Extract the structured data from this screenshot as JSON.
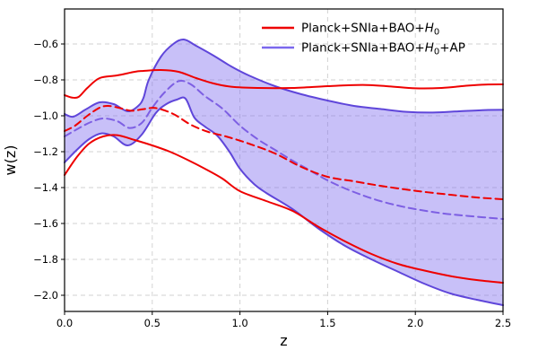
{
  "figure": {
    "background": "#ffffff",
    "frame_color": "#000000",
    "grid": {
      "color": "#d2d2d2",
      "dash": "5,4",
      "width": 1
    },
    "tick_color": "#000000",
    "text_color": "#000000"
  },
  "chart_data": {
    "type": "line",
    "title": "",
    "xlabel": "z",
    "ylabel": "w(z)",
    "xlim": [
      0,
      2.5
    ],
    "ylim": [
      -2.09,
      -0.405
    ],
    "grid": "dashed, both axes",
    "legend_position": "upper right, no frame",
    "x_ticks": [
      0,
      0.5,
      1.0,
      1.5,
      2.0,
      2.5
    ],
    "x_tick_labels": [
      "0.0",
      "0.5",
      "1.0",
      "1.5",
      "2.0",
      "2.5"
    ],
    "y_ticks": [
      -0.6,
      -0.8,
      -1.0,
      -1.2,
      -1.4,
      -1.6,
      -1.8,
      -2.0
    ],
    "y_tick_labels": [
      "−0.6",
      "−0.8",
      "−1.0",
      "−1.2",
      "−1.4",
      "−1.6",
      "−1.8",
      "−2.0"
    ],
    "legend": [
      {
        "label": "Planck+SNIa+BAO+H₀",
        "label_parts": {
          "prefix": "Planck+SNIa+BAO+",
          "math": "H",
          "sub": "0",
          "suffix": ""
        },
        "color": "#ee0000"
      },
      {
        "label": "Planck+SNIa+BAO+H₀+AP",
        "label_parts": {
          "prefix": "Planck+SNIa+BAO+",
          "math": "H",
          "sub": "0",
          "suffix": "+AP"
        },
        "color": "#7b68ee"
      }
    ],
    "band": {
      "name": "Planck+SNIa+BAO+H0+AP 1-sigma region",
      "fill": "#7b68ee",
      "fill_opacity": 0.42,
      "upper_series": "ap-upper",
      "lower_series": "ap-lower"
    },
    "series": [
      {
        "id": "red-upper",
        "name": "Planck+SNIa+BAO+H0 upper bound",
        "color": "#ee0000",
        "style": "solid",
        "points": [
          [
            0,
            -0.885
          ],
          [
            0.04,
            -0.898
          ],
          [
            0.08,
            -0.895
          ],
          [
            0.13,
            -0.845
          ],
          [
            0.2,
            -0.79
          ],
          [
            0.3,
            -0.775
          ],
          [
            0.4,
            -0.755
          ],
          [
            0.45,
            -0.75
          ],
          [
            0.55,
            -0.745
          ],
          [
            0.65,
            -0.755
          ],
          [
            0.75,
            -0.79
          ],
          [
            0.85,
            -0.82
          ],
          [
            0.95,
            -0.838
          ],
          [
            1.1,
            -0.845
          ],
          [
            1.3,
            -0.845
          ],
          [
            1.5,
            -0.835
          ],
          [
            1.7,
            -0.828
          ],
          [
            1.85,
            -0.836
          ],
          [
            2.0,
            -0.847
          ],
          [
            2.15,
            -0.845
          ],
          [
            2.3,
            -0.832
          ],
          [
            2.4,
            -0.826
          ],
          [
            2.5,
            -0.825
          ]
        ]
      },
      {
        "id": "red-median",
        "name": "Planck+SNIa+BAO+H0 median",
        "color": "#ee0000",
        "style": "dashed",
        "points": [
          [
            0,
            -1.085
          ],
          [
            0.06,
            -1.055
          ],
          [
            0.13,
            -1.0
          ],
          [
            0.2,
            -0.955
          ],
          [
            0.25,
            -0.945
          ],
          [
            0.32,
            -0.958
          ],
          [
            0.38,
            -0.972
          ],
          [
            0.45,
            -0.963
          ],
          [
            0.52,
            -0.957
          ],
          [
            0.62,
            -0.99
          ],
          [
            0.72,
            -1.05
          ],
          [
            0.82,
            -1.09
          ],
          [
            0.92,
            -1.115
          ],
          [
            1.05,
            -1.155
          ],
          [
            1.2,
            -1.21
          ],
          [
            1.35,
            -1.285
          ],
          [
            1.5,
            -1.34
          ],
          [
            1.65,
            -1.365
          ],
          [
            1.8,
            -1.39
          ],
          [
            2.0,
            -1.418
          ],
          [
            2.2,
            -1.44
          ],
          [
            2.35,
            -1.455
          ],
          [
            2.5,
            -1.465
          ]
        ]
      },
      {
        "id": "red-lower",
        "name": "Planck+SNIa+BAO+H0 lower bound",
        "color": "#ee0000",
        "style": "solid",
        "points": [
          [
            0,
            -1.33
          ],
          [
            0.07,
            -1.23
          ],
          [
            0.14,
            -1.155
          ],
          [
            0.22,
            -1.115
          ],
          [
            0.3,
            -1.108
          ],
          [
            0.4,
            -1.135
          ],
          [
            0.5,
            -1.165
          ],
          [
            0.6,
            -1.2
          ],
          [
            0.7,
            -1.245
          ],
          [
            0.8,
            -1.295
          ],
          [
            0.9,
            -1.35
          ],
          [
            1.0,
            -1.42
          ],
          [
            1.15,
            -1.475
          ],
          [
            1.3,
            -1.53
          ],
          [
            1.45,
            -1.62
          ],
          [
            1.6,
            -1.7
          ],
          [
            1.75,
            -1.77
          ],
          [
            1.9,
            -1.825
          ],
          [
            2.05,
            -1.862
          ],
          [
            2.2,
            -1.893
          ],
          [
            2.35,
            -1.915
          ],
          [
            2.5,
            -1.93
          ]
        ]
      },
      {
        "id": "ap-upper",
        "name": "Planck+SNIa+BAO+H0+AP upper bound",
        "color": "#5f46da",
        "style": "solid",
        "points": [
          [
            0,
            -0.99
          ],
          [
            0.05,
            -1.005
          ],
          [
            0.12,
            -0.965
          ],
          [
            0.2,
            -0.925
          ],
          [
            0.28,
            -0.935
          ],
          [
            0.36,
            -0.975
          ],
          [
            0.42,
            -0.945
          ],
          [
            0.45,
            -0.9
          ],
          [
            0.48,
            -0.8
          ],
          [
            0.55,
            -0.67
          ],
          [
            0.62,
            -0.6
          ],
          [
            0.68,
            -0.575
          ],
          [
            0.75,
            -0.61
          ],
          [
            0.85,
            -0.665
          ],
          [
            0.95,
            -0.725
          ],
          [
            1.05,
            -0.775
          ],
          [
            1.2,
            -0.835
          ],
          [
            1.35,
            -0.88
          ],
          [
            1.5,
            -0.915
          ],
          [
            1.65,
            -0.945
          ],
          [
            1.8,
            -0.962
          ],
          [
            1.95,
            -0.978
          ],
          [
            2.1,
            -0.982
          ],
          [
            2.25,
            -0.975
          ],
          [
            2.4,
            -0.968
          ],
          [
            2.5,
            -0.967
          ]
        ]
      },
      {
        "id": "ap-median",
        "name": "Planck+SNIa+BAO+H0+AP median",
        "color": "#7d5fe3",
        "style": "dashed",
        "points": [
          [
            0,
            -1.115
          ],
          [
            0.08,
            -1.07
          ],
          [
            0.15,
            -1.035
          ],
          [
            0.22,
            -1.015
          ],
          [
            0.3,
            -1.03
          ],
          [
            0.37,
            -1.068
          ],
          [
            0.44,
            -1.04
          ],
          [
            0.5,
            -0.955
          ],
          [
            0.57,
            -0.87
          ],
          [
            0.65,
            -0.807
          ],
          [
            0.72,
            -0.825
          ],
          [
            0.8,
            -0.89
          ],
          [
            0.9,
            -0.96
          ],
          [
            1.0,
            -1.055
          ],
          [
            1.1,
            -1.13
          ],
          [
            1.2,
            -1.19
          ],
          [
            1.3,
            -1.25
          ],
          [
            1.4,
            -1.305
          ],
          [
            1.5,
            -1.36
          ],
          [
            1.6,
            -1.405
          ],
          [
            1.7,
            -1.443
          ],
          [
            1.8,
            -1.475
          ],
          [
            1.9,
            -1.5
          ],
          [
            2.0,
            -1.52
          ],
          [
            2.15,
            -1.543
          ],
          [
            2.3,
            -1.558
          ],
          [
            2.5,
            -1.575
          ]
        ]
      },
      {
        "id": "ap-lower",
        "name": "Planck+SNIa+BAO+H0+AP lower bound",
        "color": "#5f46da",
        "style": "solid",
        "points": [
          [
            0,
            -1.26
          ],
          [
            0.07,
            -1.19
          ],
          [
            0.14,
            -1.13
          ],
          [
            0.21,
            -1.098
          ],
          [
            0.28,
            -1.115
          ],
          [
            0.36,
            -1.165
          ],
          [
            0.44,
            -1.105
          ],
          [
            0.52,
            -0.985
          ],
          [
            0.58,
            -0.935
          ],
          [
            0.64,
            -0.91
          ],
          [
            0.69,
            -0.905
          ],
          [
            0.74,
            -1.01
          ],
          [
            0.8,
            -1.06
          ],
          [
            0.87,
            -1.11
          ],
          [
            0.94,
            -1.2
          ],
          [
            1.0,
            -1.295
          ],
          [
            1.08,
            -1.38
          ],
          [
            1.15,
            -1.43
          ],
          [
            1.3,
            -1.52
          ],
          [
            1.45,
            -1.63
          ],
          [
            1.6,
            -1.725
          ],
          [
            1.75,
            -1.8
          ],
          [
            1.9,
            -1.868
          ],
          [
            2.05,
            -1.935
          ],
          [
            2.2,
            -1.99
          ],
          [
            2.35,
            -2.025
          ],
          [
            2.5,
            -2.055
          ]
        ]
      }
    ]
  }
}
